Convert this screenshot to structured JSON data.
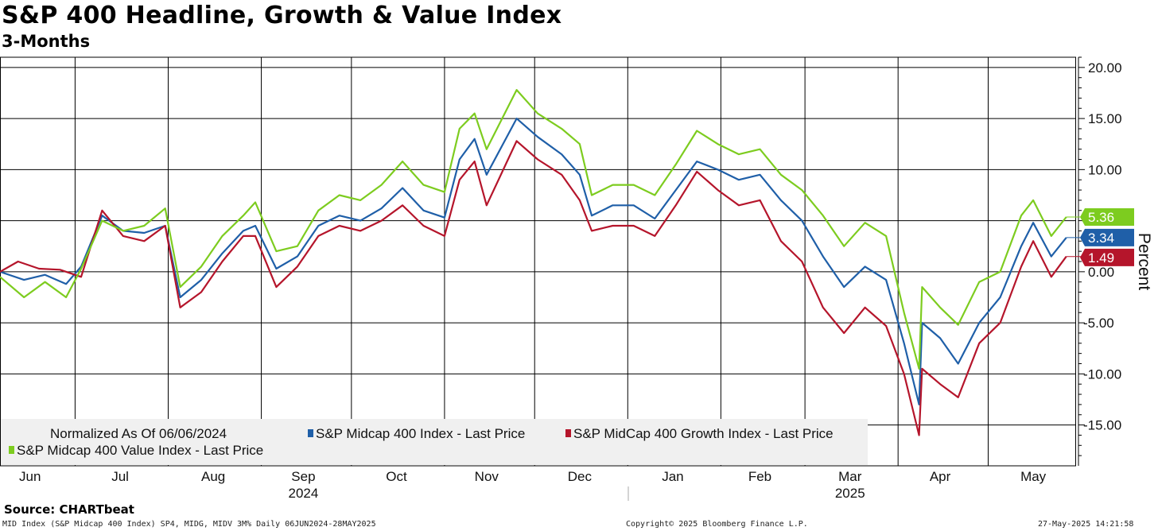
{
  "header": {
    "title": "S&P 400 Headline, Growth & Value Index",
    "subtitle": "3-Months"
  },
  "source": "Source: CHARTbeat",
  "footer": {
    "left": "MID Index (S&P Midcap 400 Index) SP4, MIDG, MIDV 3M%  Daily 06JUN2024-28MAY2025",
    "center": "Copyright© 2025 Bloomberg Finance L.P.",
    "right": "27-May-2025 14:21:58"
  },
  "chart_data": {
    "type": "line",
    "title": "S&P 400 Headline, Growth & Value Index",
    "subtitle": "3-Months",
    "ylabel": "Percent",
    "ylim": [
      -19,
      21
    ],
    "yticks": [
      20,
      15,
      10,
      5,
      0,
      -5,
      -10,
      -15
    ],
    "ytick_labels": [
      "20.00",
      "15.00",
      "10.00",
      "5.00",
      "0.00",
      "-5.00",
      "-10.00",
      "-15.00"
    ],
    "xlim": [
      "2024-06-06",
      "2025-05-30"
    ],
    "month_ticks": [
      {
        "label": "Jun",
        "date": "2024-06-16"
      },
      {
        "label": "Jul",
        "date": "2024-07-16"
      },
      {
        "label": "Aug",
        "date": "2024-08-16"
      },
      {
        "label": "Sep",
        "date": "2024-09-15"
      },
      {
        "label": "Oct",
        "date": "2024-10-16"
      },
      {
        "label": "Nov",
        "date": "2024-11-15"
      },
      {
        "label": "Dec",
        "date": "2024-12-16"
      },
      {
        "label": "Jan",
        "date": "2025-01-16"
      },
      {
        "label": "Feb",
        "date": "2025-02-14"
      },
      {
        "label": "Mar",
        "date": "2025-03-16"
      },
      {
        "label": "Apr",
        "date": "2025-04-15"
      },
      {
        "label": "May",
        "date": "2025-05-16"
      }
    ],
    "vertical_gridlines": [
      "2024-07-01",
      "2024-08-01",
      "2024-09-01",
      "2024-10-01",
      "2024-11-01",
      "2024-12-01",
      "2025-01-01",
      "2025-02-01",
      "2025-03-01",
      "2025-04-01",
      "2025-05-01"
    ],
    "year_labels": [
      {
        "label": "2024",
        "date": "2024-09-15"
      },
      {
        "label": "2025",
        "date": "2025-03-16"
      }
    ],
    "legend": {
      "position": "bottom-left",
      "note": "Normalized As Of 06/06/2024"
    },
    "grid": true,
    "series": [
      {
        "name": "S&P Midcap 400 Index - Last Price",
        "color": "#1f5fa8",
        "last_value_label": "3.34",
        "points": [
          [
            "2024-06-06",
            0.0
          ],
          [
            "2024-06-14",
            -0.8
          ],
          [
            "2024-06-21",
            -0.3
          ],
          [
            "2024-06-28",
            -1.2
          ],
          [
            "2024-07-03",
            0.5
          ],
          [
            "2024-07-10",
            5.5
          ],
          [
            "2024-07-17",
            4.0
          ],
          [
            "2024-07-24",
            3.8
          ],
          [
            "2024-07-31",
            4.5
          ],
          [
            "2024-08-05",
            -2.5
          ],
          [
            "2024-08-12",
            -0.8
          ],
          [
            "2024-08-19",
            1.8
          ],
          [
            "2024-08-26",
            4.0
          ],
          [
            "2024-08-30",
            4.5
          ],
          [
            "2024-09-06",
            0.3
          ],
          [
            "2024-09-13",
            1.5
          ],
          [
            "2024-09-20",
            4.5
          ],
          [
            "2024-09-27",
            5.5
          ],
          [
            "2024-10-04",
            5.0
          ],
          [
            "2024-10-11",
            6.2
          ],
          [
            "2024-10-18",
            8.2
          ],
          [
            "2024-10-25",
            6.0
          ],
          [
            "2024-11-01",
            5.3
          ],
          [
            "2024-11-06",
            11.0
          ],
          [
            "2024-11-11",
            13.0
          ],
          [
            "2024-11-15",
            9.5
          ],
          [
            "2024-11-25",
            15.0
          ],
          [
            "2024-12-02",
            13.2
          ],
          [
            "2024-12-10",
            11.5
          ],
          [
            "2024-12-16",
            9.5
          ],
          [
            "2024-12-20",
            5.5
          ],
          [
            "2024-12-27",
            6.5
          ],
          [
            "2025-01-03",
            6.5
          ],
          [
            "2025-01-10",
            5.2
          ],
          [
            "2025-01-17",
            8.0
          ],
          [
            "2025-01-24",
            10.8
          ],
          [
            "2025-01-31",
            10.0
          ],
          [
            "2025-02-07",
            9.0
          ],
          [
            "2025-02-14",
            9.5
          ],
          [
            "2025-02-21",
            7.0
          ],
          [
            "2025-02-28",
            5.0
          ],
          [
            "2025-03-07",
            1.5
          ],
          [
            "2025-03-14",
            -1.5
          ],
          [
            "2025-03-21",
            0.5
          ],
          [
            "2025-03-28",
            -0.8
          ],
          [
            "2025-04-03",
            -7.0
          ],
          [
            "2025-04-08",
            -13.0
          ],
          [
            "2025-04-09",
            -5.0
          ],
          [
            "2025-04-15",
            -6.5
          ],
          [
            "2025-04-21",
            -9.0
          ],
          [
            "2025-04-28",
            -5.0
          ],
          [
            "2025-05-05",
            -2.5
          ],
          [
            "2025-05-12",
            2.5
          ],
          [
            "2025-05-16",
            4.8
          ],
          [
            "2025-05-22",
            1.5
          ],
          [
            "2025-05-27",
            3.34
          ]
        ]
      },
      {
        "name": "S&P MidCap 400 Growth Index - Last Price",
        "color": "#b5152b",
        "last_value_label": "1.49",
        "points": [
          [
            "2024-06-06",
            0.0
          ],
          [
            "2024-06-12",
            1.0
          ],
          [
            "2024-06-19",
            0.3
          ],
          [
            "2024-06-26",
            0.2
          ],
          [
            "2024-07-03",
            -0.5
          ],
          [
            "2024-07-10",
            6.0
          ],
          [
            "2024-07-17",
            3.5
          ],
          [
            "2024-07-24",
            3.0
          ],
          [
            "2024-07-31",
            4.5
          ],
          [
            "2024-08-05",
            -3.5
          ],
          [
            "2024-08-12",
            -2.0
          ],
          [
            "2024-08-19",
            1.0
          ],
          [
            "2024-08-26",
            3.5
          ],
          [
            "2024-08-30",
            3.5
          ],
          [
            "2024-09-06",
            -1.5
          ],
          [
            "2024-09-13",
            0.5
          ],
          [
            "2024-09-20",
            3.5
          ],
          [
            "2024-09-27",
            4.5
          ],
          [
            "2024-10-04",
            4.0
          ],
          [
            "2024-10-11",
            5.0
          ],
          [
            "2024-10-18",
            6.5
          ],
          [
            "2024-10-25",
            4.5
          ],
          [
            "2024-11-01",
            3.5
          ],
          [
            "2024-11-06",
            9.0
          ],
          [
            "2024-11-11",
            10.8
          ],
          [
            "2024-11-15",
            6.5
          ],
          [
            "2024-11-25",
            12.8
          ],
          [
            "2024-12-02",
            11.0
          ],
          [
            "2024-12-10",
            9.5
          ],
          [
            "2024-12-16",
            7.0
          ],
          [
            "2024-12-20",
            4.0
          ],
          [
            "2024-12-27",
            4.5
          ],
          [
            "2025-01-03",
            4.5
          ],
          [
            "2025-01-10",
            3.5
          ],
          [
            "2025-01-17",
            6.5
          ],
          [
            "2025-01-24",
            9.8
          ],
          [
            "2025-01-31",
            8.0
          ],
          [
            "2025-02-07",
            6.5
          ],
          [
            "2025-02-14",
            7.0
          ],
          [
            "2025-02-21",
            3.0
          ],
          [
            "2025-02-28",
            1.0
          ],
          [
            "2025-03-07",
            -3.5
          ],
          [
            "2025-03-14",
            -6.0
          ],
          [
            "2025-03-21",
            -3.5
          ],
          [
            "2025-03-28",
            -5.3
          ],
          [
            "2025-04-03",
            -10.0
          ],
          [
            "2025-04-08",
            -16.0
          ],
          [
            "2025-04-09",
            -9.5
          ],
          [
            "2025-04-15",
            -11.0
          ],
          [
            "2025-04-21",
            -12.3
          ],
          [
            "2025-04-28",
            -7.0
          ],
          [
            "2025-05-05",
            -5.0
          ],
          [
            "2025-05-12",
            0.5
          ],
          [
            "2025-05-16",
            3.0
          ],
          [
            "2025-05-22",
            -0.5
          ],
          [
            "2025-05-27",
            1.49
          ]
        ]
      },
      {
        "name": "S&P Midcap 400 Value Index - Last Price",
        "color": "#7dcc1f",
        "last_value_label": "5.36",
        "points": [
          [
            "2024-06-06",
            -0.5
          ],
          [
            "2024-06-14",
            -2.5
          ],
          [
            "2024-06-21",
            -1.0
          ],
          [
            "2024-06-28",
            -2.5
          ],
          [
            "2024-07-03",
            0.3
          ],
          [
            "2024-07-10",
            5.0
          ],
          [
            "2024-07-17",
            4.0
          ],
          [
            "2024-07-24",
            4.5
          ],
          [
            "2024-07-31",
            6.2
          ],
          [
            "2024-08-05",
            -1.5
          ],
          [
            "2024-08-12",
            0.5
          ],
          [
            "2024-08-19",
            3.5
          ],
          [
            "2024-08-26",
            5.5
          ],
          [
            "2024-08-30",
            6.8
          ],
          [
            "2024-09-06",
            2.0
          ],
          [
            "2024-09-13",
            2.5
          ],
          [
            "2024-09-20",
            6.0
          ],
          [
            "2024-09-27",
            7.5
          ],
          [
            "2024-10-04",
            7.0
          ],
          [
            "2024-10-11",
            8.5
          ],
          [
            "2024-10-18",
            10.8
          ],
          [
            "2024-10-25",
            8.5
          ],
          [
            "2024-11-01",
            7.8
          ],
          [
            "2024-11-06",
            14.0
          ],
          [
            "2024-11-11",
            15.5
          ],
          [
            "2024-11-15",
            12.0
          ],
          [
            "2024-11-25",
            17.8
          ],
          [
            "2024-12-02",
            15.5
          ],
          [
            "2024-12-10",
            14.0
          ],
          [
            "2024-12-16",
            12.5
          ],
          [
            "2024-12-20",
            7.5
          ],
          [
            "2024-12-27",
            8.5
          ],
          [
            "2025-01-03",
            8.5
          ],
          [
            "2025-01-10",
            7.5
          ],
          [
            "2025-01-17",
            10.5
          ],
          [
            "2025-01-24",
            13.8
          ],
          [
            "2025-01-31",
            12.5
          ],
          [
            "2025-02-07",
            11.5
          ],
          [
            "2025-02-14",
            12.0
          ],
          [
            "2025-02-21",
            9.5
          ],
          [
            "2025-02-28",
            8.0
          ],
          [
            "2025-03-07",
            5.5
          ],
          [
            "2025-03-14",
            2.5
          ],
          [
            "2025-03-21",
            4.8
          ],
          [
            "2025-03-28",
            3.5
          ],
          [
            "2025-04-03",
            -4.0
          ],
          [
            "2025-04-08",
            -9.5
          ],
          [
            "2025-04-09",
            -1.5
          ],
          [
            "2025-04-15",
            -3.5
          ],
          [
            "2025-04-21",
            -5.2
          ],
          [
            "2025-04-28",
            -1.0
          ],
          [
            "2025-05-05",
            0.0
          ],
          [
            "2025-05-12",
            5.5
          ],
          [
            "2025-05-16",
            7.0
          ],
          [
            "2025-05-22",
            3.5
          ],
          [
            "2025-05-27",
            5.36
          ]
        ]
      }
    ]
  }
}
